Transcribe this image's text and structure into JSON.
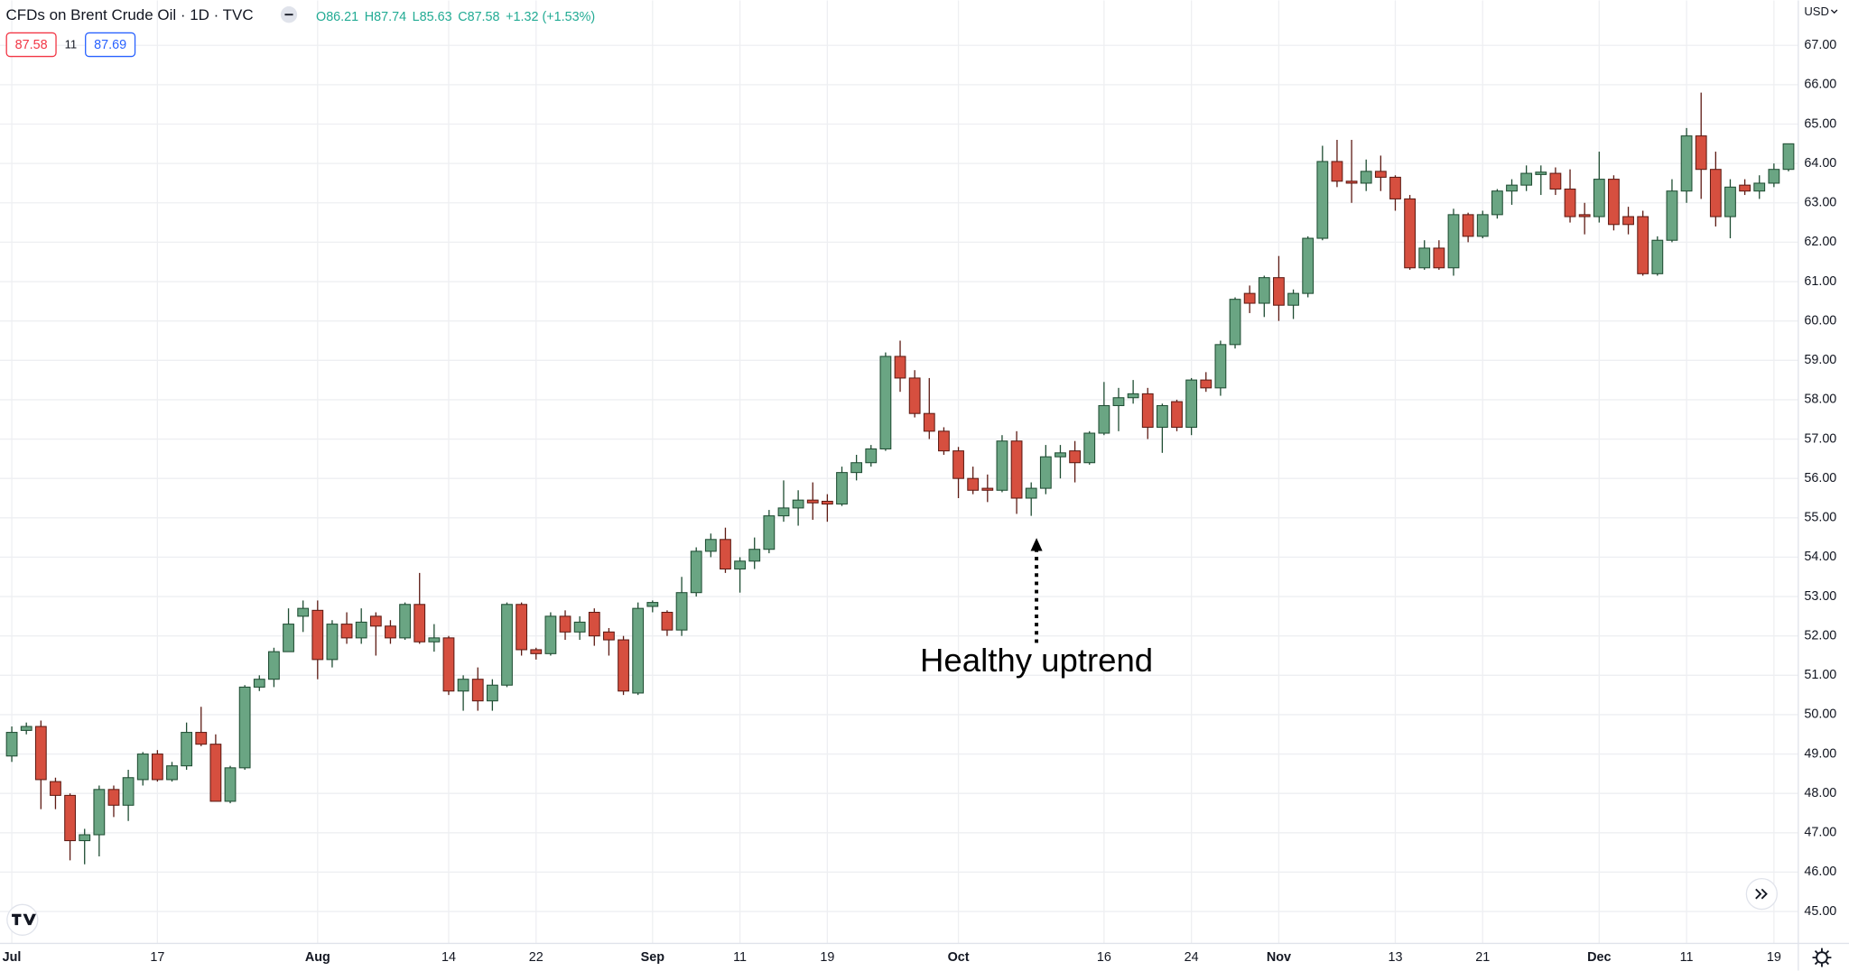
{
  "chart_data": {
    "type": "candlestick",
    "title": "CFDs on Brent Crude Oil · 1D · TVC",
    "ohlc_legend": [
      "O86.21",
      "H87.74",
      "L85.63",
      "C87.58",
      "+1.32 (+1.53%)"
    ],
    "bid": "87.58",
    "spread": "11",
    "ask": "87.69",
    "currency": "USD",
    "annotation": "Healthy uptrend",
    "up_color": "#6aa583",
    "down_color": "#d64f3f",
    "up_border": "#1f4d33",
    "down_border": "#5e1b14",
    "grid": true,
    "ylim": [
      44.19,
      68.14
    ],
    "yticks": [
      {
        "value": 45,
        "label": "45.00"
      },
      {
        "value": 46,
        "label": "46.00"
      },
      {
        "value": 47,
        "label": "47.00"
      },
      {
        "value": 48,
        "label": "48.00"
      },
      {
        "value": 49,
        "label": "49.00"
      },
      {
        "value": 50,
        "label": "50.00"
      },
      {
        "value": 51,
        "label": "51.00"
      },
      {
        "value": 52,
        "label": "52.00"
      },
      {
        "value": 53,
        "label": "53.00"
      },
      {
        "value": 54,
        "label": "54.00"
      },
      {
        "value": 55,
        "label": "55.00"
      },
      {
        "value": 56,
        "label": "56.00"
      },
      {
        "value": 57,
        "label": "57.00"
      },
      {
        "value": 58,
        "label": "58.00"
      },
      {
        "value": 59,
        "label": "59.00"
      },
      {
        "value": 60,
        "label": "60.00"
      },
      {
        "value": 61,
        "label": "61.00"
      },
      {
        "value": 62,
        "label": "62.00"
      },
      {
        "value": 63,
        "label": "63.00"
      },
      {
        "value": 64,
        "label": "64.00"
      },
      {
        "value": 65,
        "label": "65.00"
      },
      {
        "value": 66,
        "label": "66.00"
      },
      {
        "value": 67,
        "label": "67.00"
      }
    ],
    "categories": [
      "Jul",
      null,
      null,
      null,
      null,
      null,
      null,
      null,
      null,
      null,
      "17",
      null,
      null,
      null,
      null,
      null,
      null,
      null,
      null,
      null,
      null,
      "Aug",
      null,
      null,
      null,
      null,
      null,
      null,
      null,
      null,
      "14",
      null,
      null,
      null,
      null,
      null,
      "22",
      null,
      null,
      null,
      null,
      null,
      null,
      null,
      "Sep",
      null,
      null,
      null,
      null,
      null,
      "11",
      null,
      null,
      null,
      null,
      null,
      "19",
      null,
      null,
      null,
      null,
      null,
      null,
      null,
      null,
      "Oct",
      null,
      null,
      null,
      null,
      null,
      null,
      null,
      null,
      null,
      "16",
      null,
      null,
      null,
      null,
      null,
      "24",
      null,
      null,
      null,
      null,
      null,
      "Nov",
      null,
      null,
      null,
      null,
      null,
      null,
      null,
      "13",
      null,
      null,
      null,
      null,
      null,
      "21",
      null,
      null,
      null,
      null,
      null,
      null,
      null,
      "Dec",
      null,
      null,
      null,
      null,
      null,
      "11",
      null,
      null,
      null,
      null,
      null,
      "19",
      null
    ],
    "open": [
      48.95,
      49.6,
      49.7,
      48.3,
      47.95,
      46.8,
      46.95,
      48.1,
      47.7,
      48.35,
      49.0,
      48.35,
      48.7,
      49.55,
      49.25,
      47.8,
      48.65,
      50.7,
      50.9,
      51.6,
      52.5,
      52.65,
      51.4,
      52.3,
      51.95,
      52.5,
      52.25,
      51.95,
      52.8,
      51.85,
      51.95,
      50.6,
      50.9,
      50.35,
      50.75,
      52.8,
      51.65,
      51.55,
      52.5,
      52.1,
      52.6,
      52.1,
      51.9,
      50.55,
      52.75,
      52.6,
      52.15,
      53.1,
      54.15,
      54.45,
      53.7,
      53.9,
      54.2,
      55.05,
      55.25,
      55.45,
      55.42,
      55.35,
      56.15,
      56.4,
      56.75,
      59.1,
      58.55,
      57.65,
      57.2,
      56.7,
      56.0,
      55.75,
      55.7,
      56.95,
      55.5,
      55.75,
      56.55,
      56.7,
      56.4,
      57.15,
      57.85,
      58.05,
      58.15,
      57.3,
      57.95,
      57.3,
      58.5,
      58.3,
      59.4,
      60.7,
      60.45,
      61.1,
      60.4,
      60.7,
      62.1,
      64.05,
      63.55,
      63.5,
      63.8,
      63.65,
      63.1,
      61.35,
      61.85,
      61.35,
      62.7,
      62.15,
      62.7,
      63.3,
      63.45,
      63.72,
      63.75,
      63.35,
      62.7,
      62.65,
      63.6,
      62.65,
      62.65,
      61.2,
      62.05,
      63.3,
      64.7,
      63.85,
      62.65,
      63.45,
      63.3,
      63.5,
      63.85
    ],
    "high": [
      49.7,
      49.8,
      49.85,
      48.4,
      48.0,
      47.1,
      48.2,
      48.2,
      48.6,
      49.05,
      49.1,
      48.8,
      49.8,
      50.2,
      49.5,
      48.7,
      50.75,
      51.0,
      51.7,
      52.7,
      52.9,
      52.9,
      52.4,
      52.6,
      52.7,
      52.6,
      52.4,
      52.85,
      53.6,
      52.3,
      52.0,
      51.0,
      51.2,
      50.9,
      52.85,
      52.85,
      51.7,
      52.6,
      52.65,
      52.5,
      52.7,
      52.2,
      52.0,
      52.85,
      52.9,
      52.65,
      53.5,
      54.25,
      54.6,
      54.75,
      54.0,
      54.5,
      55.2,
      55.95,
      55.7,
      55.9,
      55.6,
      56.3,
      56.6,
      56.85,
      59.2,
      59.5,
      58.75,
      58.55,
      57.3,
      56.8,
      56.3,
      56.1,
      57.1,
      57.2,
      55.9,
      56.85,
      56.85,
      56.95,
      57.2,
      58.45,
      58.3,
      58.5,
      58.3,
      57.9,
      58.0,
      58.55,
      58.7,
      59.5,
      60.6,
      60.9,
      61.15,
      61.65,
      60.8,
      62.15,
      64.45,
      64.6,
      64.6,
      64.1,
      64.2,
      63.7,
      63.2,
      62.05,
      62.05,
      62.85,
      62.75,
      62.8,
      63.35,
      63.6,
      63.95,
      63.95,
      63.9,
      63.85,
      63.0,
      64.3,
      63.7,
      62.9,
      62.8,
      62.15,
      63.6,
      64.9,
      65.8,
      64.3,
      63.6,
      63.6,
      63.7,
      64.0,
      64.5
    ],
    "low": [
      48.8,
      49.5,
      47.6,
      47.6,
      46.3,
      46.2,
      46.4,
      47.4,
      47.3,
      48.2,
      48.3,
      48.3,
      48.6,
      49.2,
      47.8,
      47.75,
      48.6,
      50.6,
      50.7,
      51.6,
      52.1,
      50.9,
      51.2,
      51.8,
      51.8,
      51.5,
      51.8,
      51.9,
      51.8,
      51.6,
      50.5,
      50.1,
      50.1,
      50.1,
      50.7,
      51.5,
      51.4,
      51.5,
      51.9,
      51.9,
      51.75,
      51.5,
      50.5,
      50.5,
      52.6,
      52.0,
      52.0,
      53.0,
      54.0,
      53.6,
      53.1,
      53.7,
      54.1,
      54.9,
      54.8,
      54.95,
      54.9,
      55.3,
      55.95,
      56.3,
      56.7,
      58.2,
      57.55,
      57.0,
      56.6,
      55.5,
      55.6,
      55.4,
      55.65,
      55.1,
      55.05,
      55.6,
      56.0,
      55.9,
      56.35,
      57.1,
      57.2,
      57.9,
      57.0,
      56.65,
      57.2,
      57.1,
      58.2,
      58.1,
      59.3,
      60.2,
      60.1,
      60.0,
      60.05,
      60.6,
      62.05,
      63.4,
      63.0,
      63.3,
      63.3,
      62.8,
      61.3,
      61.3,
      61.3,
      61.15,
      62.0,
      62.1,
      62.6,
      62.95,
      63.3,
      63.2,
      63.2,
      62.5,
      62.2,
      62.5,
      62.3,
      62.2,
      61.15,
      61.15,
      62.0,
      63.0,
      63.1,
      62.4,
      62.1,
      63.2,
      63.1,
      63.4,
      63.8
    ],
    "close": [
      49.55,
      49.7,
      48.35,
      47.95,
      46.8,
      46.95,
      48.1,
      47.7,
      48.4,
      49.0,
      48.35,
      48.7,
      49.55,
      49.25,
      47.8,
      48.65,
      50.7,
      50.9,
      51.6,
      52.3,
      52.7,
      51.4,
      52.3,
      51.95,
      52.35,
      52.25,
      51.95,
      52.8,
      51.85,
      51.95,
      50.6,
      50.9,
      50.35,
      50.75,
      52.8,
      51.65,
      51.55,
      52.5,
      52.1,
      52.35,
      52.0,
      51.9,
      50.6,
      52.7,
      52.85,
      52.15,
      53.1,
      54.15,
      54.45,
      53.7,
      53.9,
      54.2,
      55.05,
      55.25,
      55.45,
      55.38,
      55.35,
      56.15,
      56.4,
      56.75,
      59.1,
      58.55,
      57.65,
      57.2,
      56.7,
      56.0,
      55.7,
      55.7,
      56.95,
      55.5,
      55.75,
      56.55,
      56.65,
      56.4,
      57.15,
      57.85,
      58.05,
      58.15,
      57.3,
      57.85,
      57.3,
      58.5,
      58.3,
      59.4,
      60.55,
      60.45,
      61.1,
      60.4,
      60.7,
      62.1,
      64.05,
      63.55,
      63.5,
      63.8,
      63.65,
      63.1,
      61.35,
      61.85,
      61.35,
      62.7,
      62.15,
      62.7,
      63.3,
      63.45,
      63.75,
      63.78,
      63.35,
      62.65,
      62.65,
      63.6,
      62.45,
      62.45,
      61.2,
      62.05,
      63.3,
      64.7,
      63.85,
      62.65,
      63.4,
      63.3,
      63.5,
      63.85,
      64.5
    ]
  }
}
